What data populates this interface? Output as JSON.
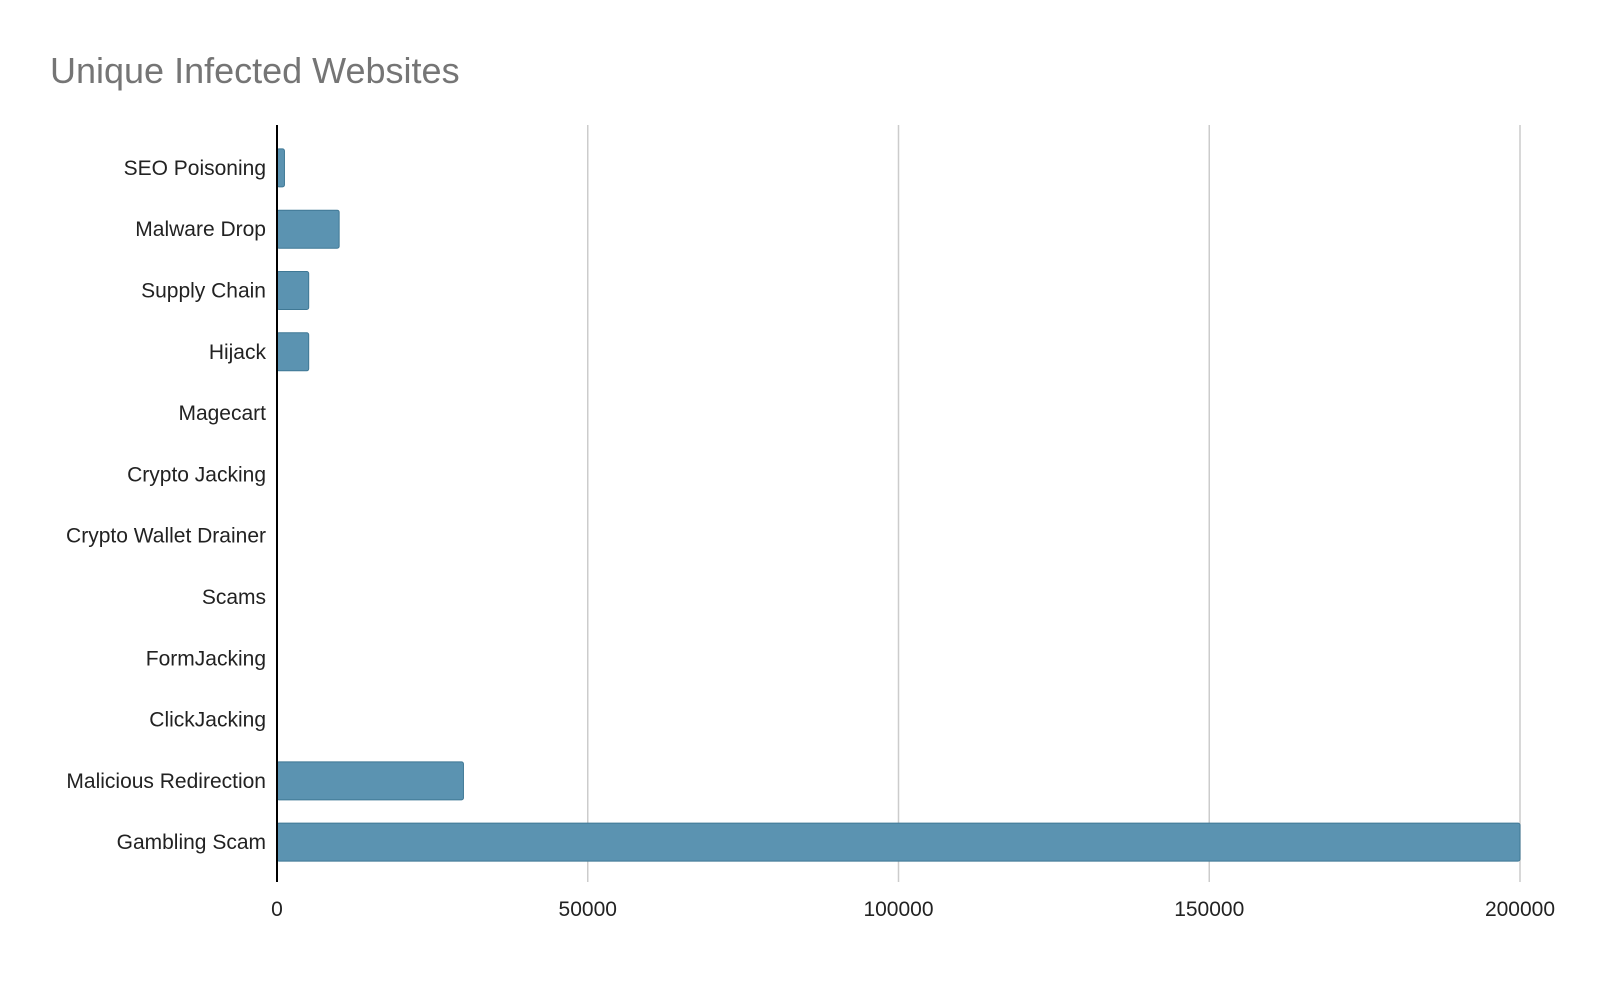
{
  "chart_data": {
    "type": "bar",
    "orientation": "horizontal",
    "title": "Unique Infected Websites",
    "xlabel": "",
    "ylabel": "",
    "categories": [
      "SEO Poisoning",
      "Malware Drop",
      "Supply Chain",
      "Hijack",
      "Magecart",
      "Crypto Jacking",
      "Crypto Wallet Drainer",
      "Scams",
      "FormJacking",
      "ClickJacking",
      "Malicious Redirection",
      "Gambling Scam"
    ],
    "values": [
      1200,
      10000,
      5100,
      5100,
      0,
      0,
      0,
      0,
      0,
      0,
      30000,
      200000
    ],
    "xlim": [
      0,
      200000
    ],
    "xticks": [
      "0",
      "50000",
      "100000",
      "150000",
      "200000"
    ],
    "grid": "vertical",
    "legend": "none",
    "colors": {
      "bar": "#5b93b1",
      "bar_edge": "#3f7895",
      "grid": "#cccccc",
      "axis": "#000000",
      "title": "#757575",
      "label": "#222222"
    }
  }
}
